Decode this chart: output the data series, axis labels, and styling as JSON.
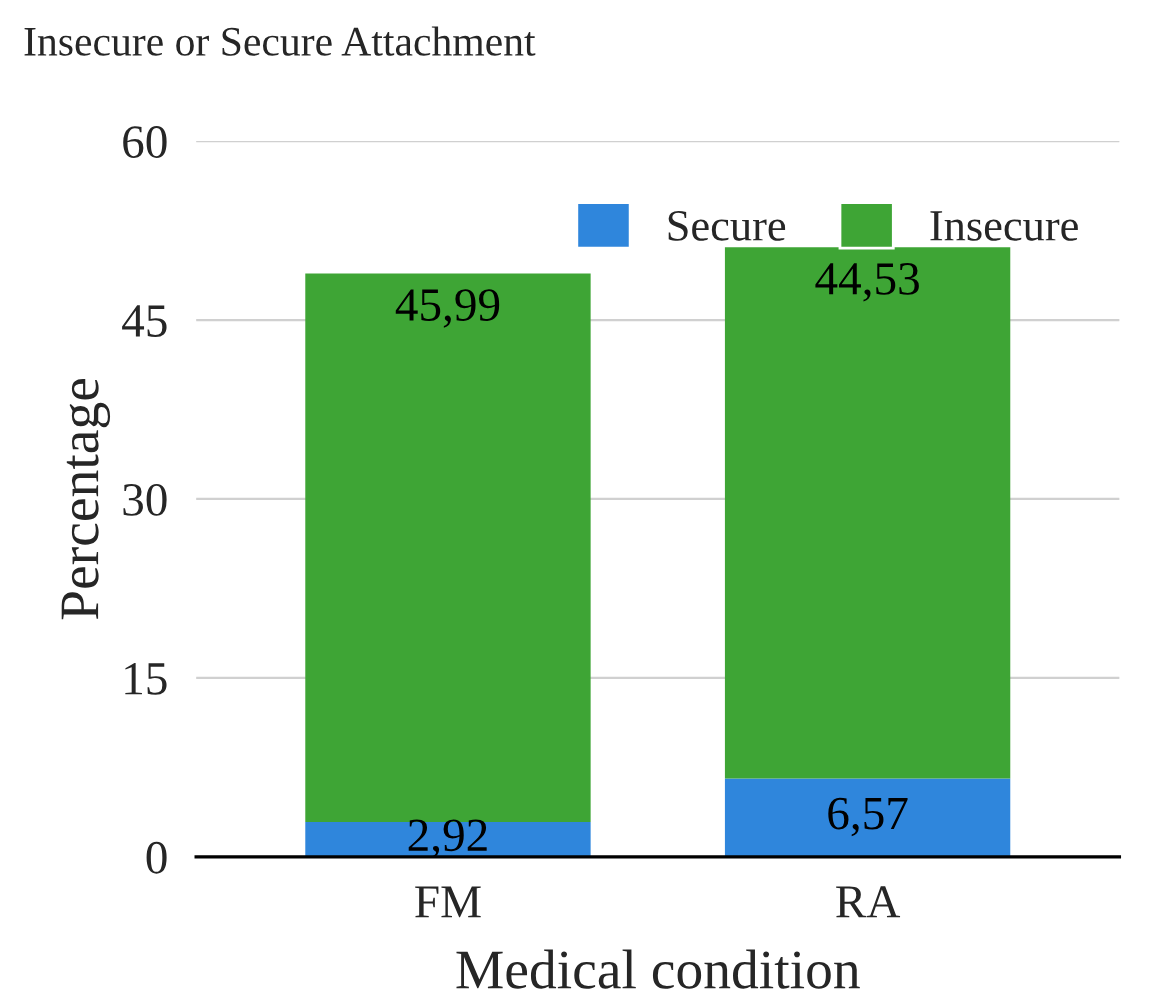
{
  "chart_data": {
    "type": "bar",
    "title": "Insecure or Secure Attachment",
    "xlabel": "Medical condition",
    "ylabel": "Percentage",
    "categories": [
      "FM",
      "RA"
    ],
    "stacked": true,
    "series": [
      {
        "name": "Secure",
        "color": "#2f86dc",
        "values": [
          2.92,
          6.57
        ],
        "value_labels": [
          "2,92",
          "6,57"
        ]
      },
      {
        "name": "Insecure",
        "color": "#3ea535",
        "values": [
          45.99,
          44.53
        ],
        "value_labels": [
          "45,99",
          "44,53"
        ]
      }
    ],
    "ylim": [
      0,
      60
    ],
    "yticks": [
      0,
      15,
      30,
      45,
      60
    ],
    "grid": "y",
    "legend": "top right"
  }
}
